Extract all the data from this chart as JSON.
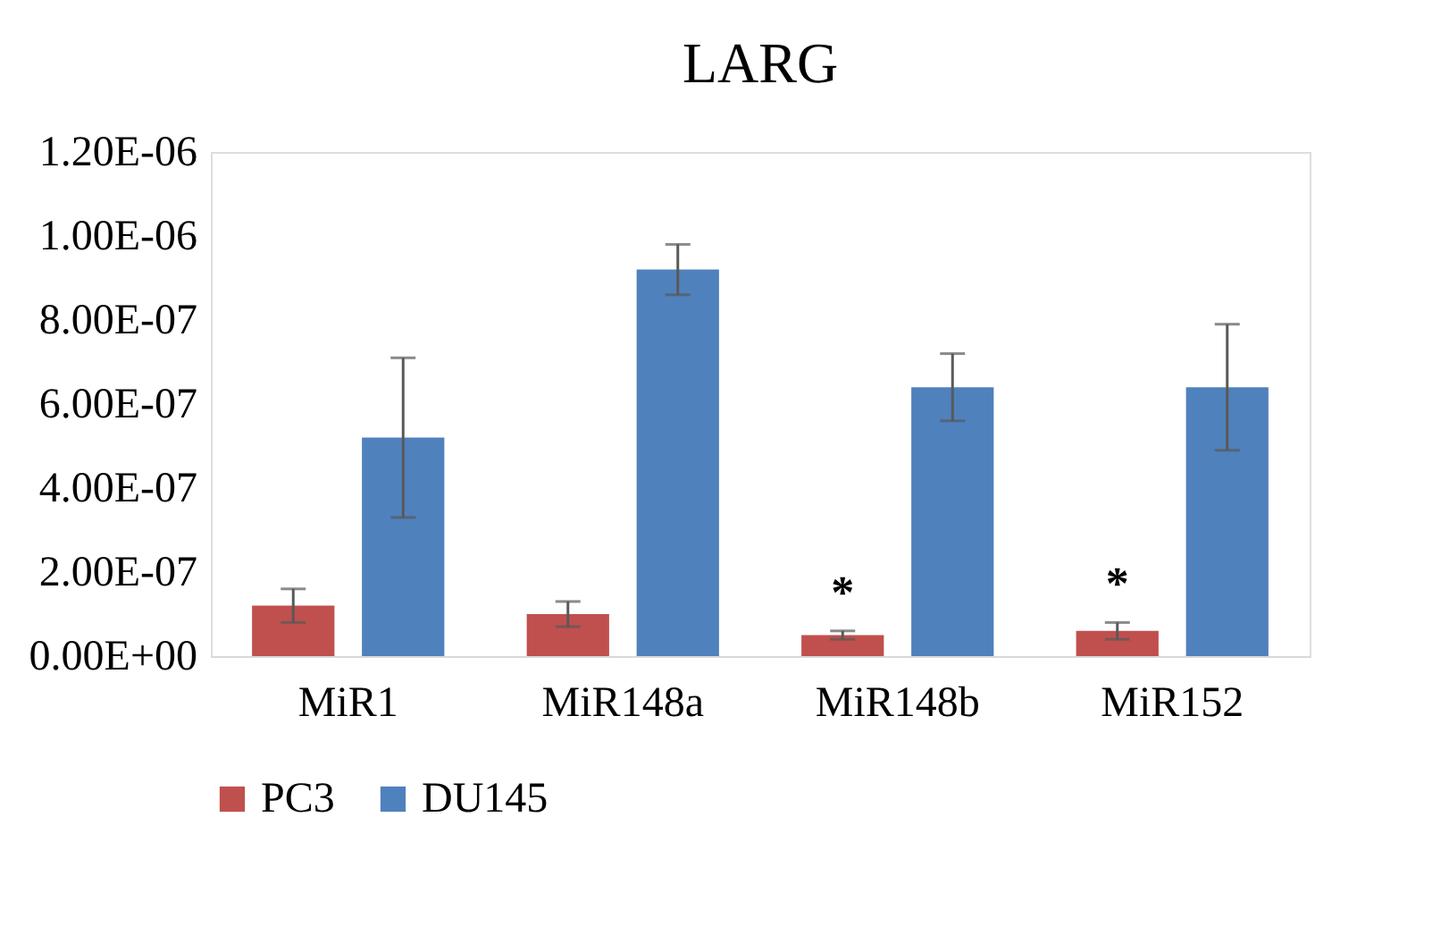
{
  "chart_data": {
    "type": "bar",
    "title": "LARG",
    "categories": [
      "MiR1",
      "MiR148a",
      "MiR148b",
      "MiR152"
    ],
    "series": [
      {
        "name": "PC3",
        "color": "#c0504d",
        "values": [
          1.2e-07,
          1e-07,
          5e-08,
          6e-08
        ],
        "errors": [
          4e-08,
          3e-08,
          1e-08,
          2e-08
        ],
        "value_labels": [
          null,
          null,
          "*",
          "*"
        ]
      },
      {
        "name": "DU145",
        "color": "#4f81bd",
        "values": [
          5.2e-07,
          9.2e-07,
          6.4e-07,
          6.4e-07
        ],
        "errors": [
          1.9e-07,
          6e-08,
          8e-08,
          1.5e-07
        ]
      }
    ],
    "ylim": [
      0,
      1.2e-06
    ],
    "yticks": [
      {
        "value": 0,
        "label": "0.00E+00"
      },
      {
        "value": 2e-07,
        "label": "2.00E-07"
      },
      {
        "value": 4e-07,
        "label": "4.00E-07"
      },
      {
        "value": 6e-07,
        "label": "6.00E-07"
      },
      {
        "value": 8e-07,
        "label": "8.00E-07"
      },
      {
        "value": 1e-06,
        "label": "1.00E-06"
      },
      {
        "value": 1.2e-06,
        "label": "1.20E-06"
      }
    ],
    "grid": false,
    "legend": "bottom"
  }
}
